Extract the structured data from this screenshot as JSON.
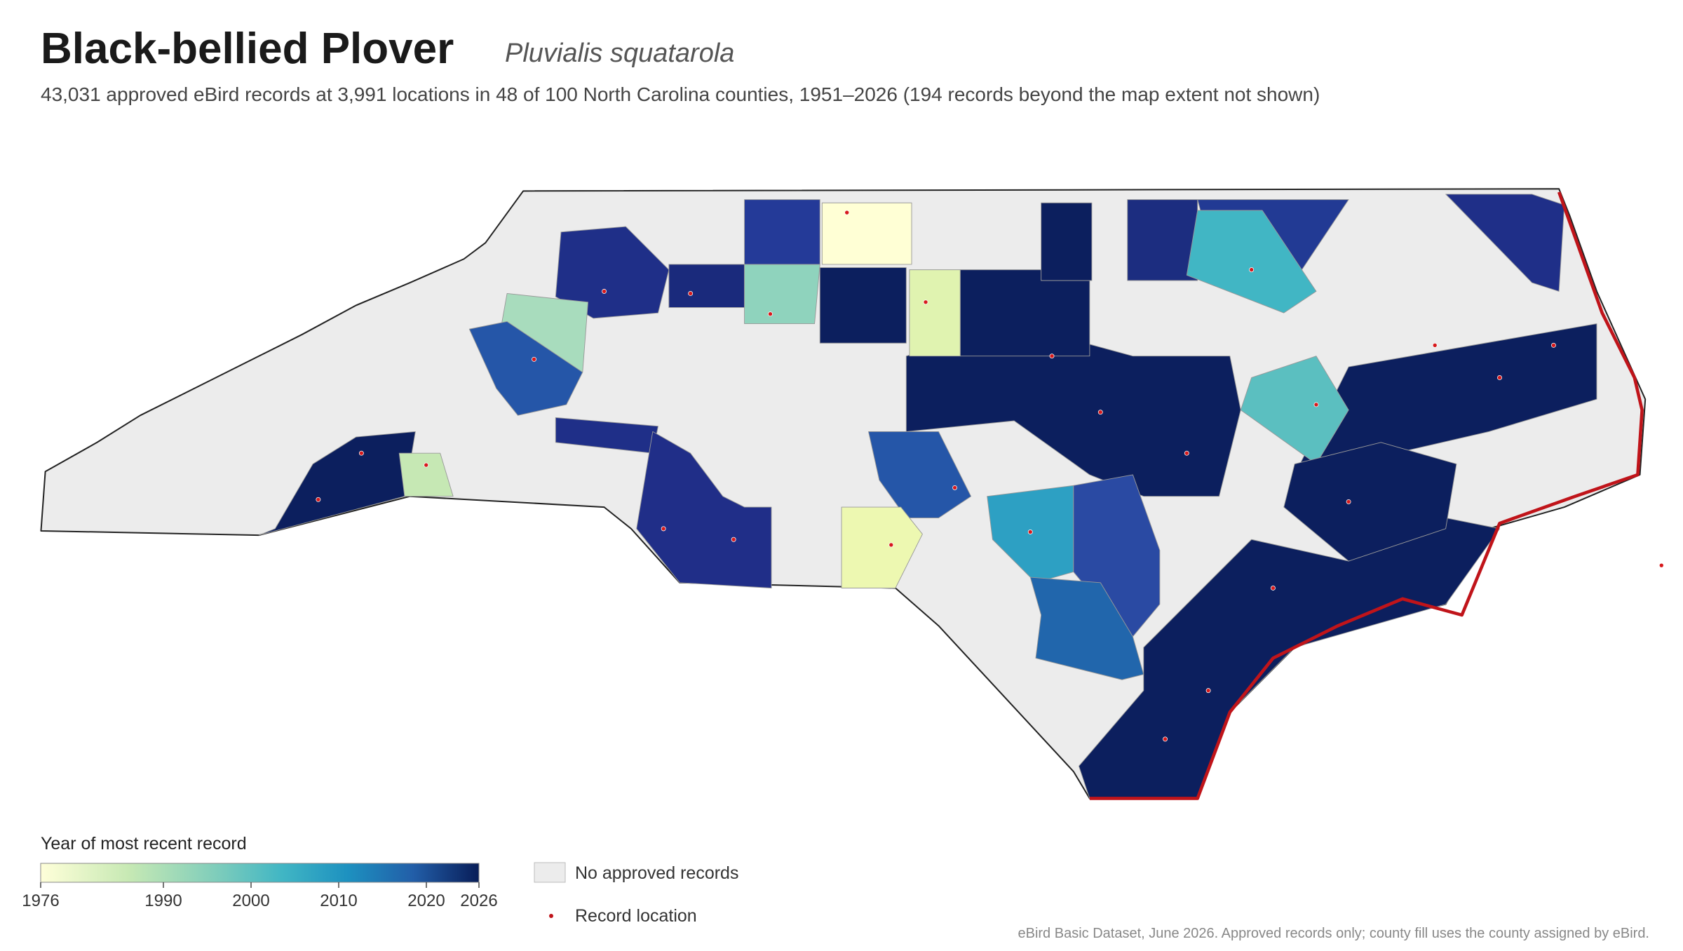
{
  "header": {
    "title": "Black-bellied Plover",
    "species": "Pluvialis squatarola",
    "description": "43,031 approved eBird records at 3,991 locations in 48 of 100 North Carolina counties, 1951–2026 (194 records beyond the map extent not shown)"
  },
  "legend": {
    "title": "Year of most recent record",
    "range": [
      1976,
      2026
    ],
    "ticks": [
      1976,
      1990,
      2000,
      2010,
      2020,
      2026
    ],
    "no_records": "No approved records",
    "record_location": "Record location"
  },
  "footnote": "eBird Basic Dataset, June 2026. Approved records only; county fill uses the county assigned by eBird."
}
